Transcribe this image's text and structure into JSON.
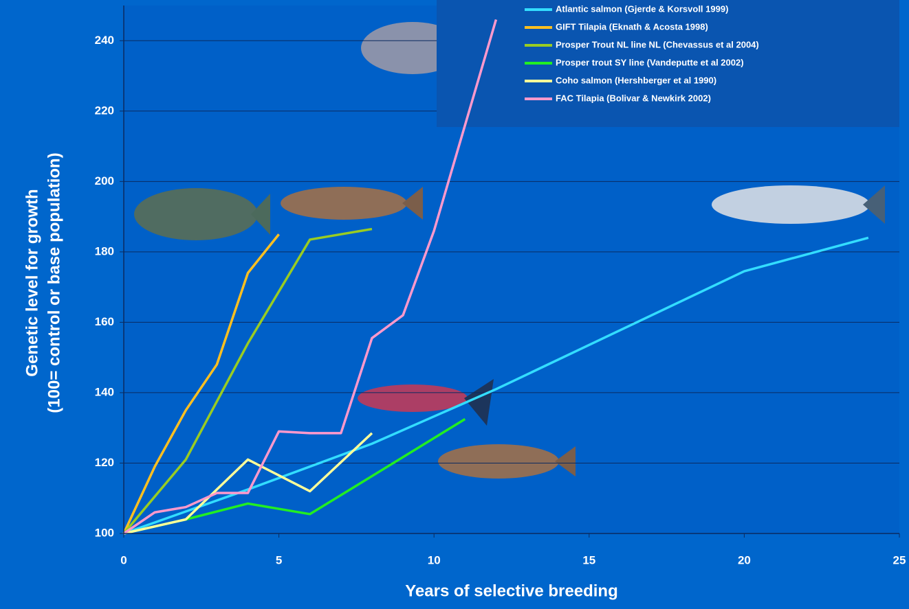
{
  "chart_data": {
    "type": "line",
    "xlabel": "Years of selective breeding",
    "ylabel": [
      "Genetic level for growth",
      "(100= control or base population)"
    ],
    "xlim": [
      0,
      25
    ],
    "xticks": [
      0,
      5,
      10,
      15,
      20,
      25
    ],
    "ylim": [
      100,
      250
    ],
    "yticks": [
      100,
      120,
      140,
      160,
      180,
      200,
      220,
      240
    ],
    "grid": true,
    "legend": "upper right",
    "series": [
      {
        "name": "Atlantic salmon (Gjerde & Korsvoll 1999)",
        "color": "#33ddff",
        "x": [
          0,
          4,
          8,
          12,
          20,
          24
        ],
        "values": [
          100,
          112.5,
          125.5,
          141,
          174.5,
          184
        ]
      },
      {
        "name": "GIFT Tilapia (Eknath & Acosta 1998)",
        "color": "#ffc020",
        "x": [
          0,
          1,
          2,
          3,
          4,
          5
        ],
        "values": [
          100,
          119,
          135,
          148,
          174,
          185
        ]
      },
      {
        "name": "Prosper Trout NL line NL (Chevassus et al 2004)",
        "color": "#99cc22",
        "x": [
          0,
          2,
          4,
          6,
          8
        ],
        "values": [
          100,
          121,
          154,
          183.5,
          186.5
        ]
      },
      {
        "name": "Prosper trout SY line (Vandeputte et al 2002)",
        "color": "#22ee22",
        "x": [
          0,
          2,
          4,
          6,
          11
        ],
        "values": [
          100,
          104,
          108.5,
          105.5,
          132.5
        ]
      },
      {
        "name": "Coho salmon (Hershberger et al 1990)",
        "color": "#ffff99",
        "x": [
          0,
          2,
          4,
          6,
          8
        ],
        "values": [
          100,
          104,
          121,
          112,
          128.5
        ]
      },
      {
        "name": "FAC Tilapia (Bolivar & Newkirk 2002)",
        "color": "#ff99cc",
        "x": [
          0,
          1,
          2,
          3,
          4,
          5,
          6,
          7,
          8,
          9,
          10,
          12
        ],
        "values": [
          100,
          106,
          107.5,
          111.5,
          111.5,
          129,
          128.5,
          128.5,
          155.5,
          162,
          186,
          246
        ]
      }
    ]
  }
}
